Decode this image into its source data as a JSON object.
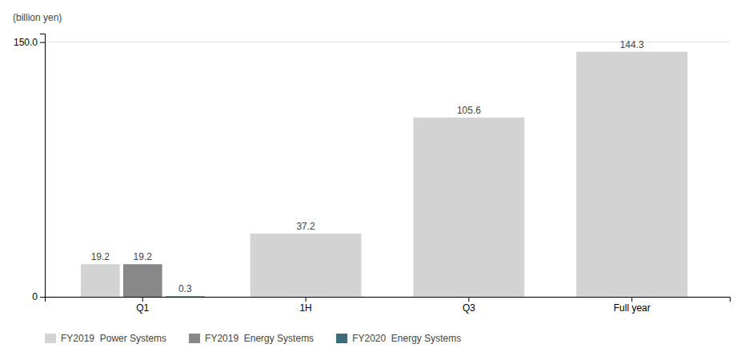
{
  "chart_data": {
    "type": "bar",
    "ylabel": "(billion yen)",
    "categories": [
      "Q1",
      "1H",
      "Q3",
      "Full year"
    ],
    "series": [
      {
        "name": "FY2019  Power Systems",
        "color": "#d3d3d3",
        "values": [
          19.2,
          37.2,
          105.6,
          144.3
        ]
      },
      {
        "name": "FY2019  Energy Systems",
        "color": "#888888",
        "values": [
          19.2,
          null,
          null,
          null
        ]
      },
      {
        "name": "FY2020  Energy Systems",
        "color": "#3d6b7a",
        "values": [
          0.3,
          null,
          null,
          null
        ]
      }
    ],
    "ylim": [
      0,
      155
    ],
    "yticks": [
      0,
      {
        "value": 150.0,
        "label": "150.0"
      }
    ],
    "grid": true,
    "legend": "bottom",
    "data_labels": true
  }
}
